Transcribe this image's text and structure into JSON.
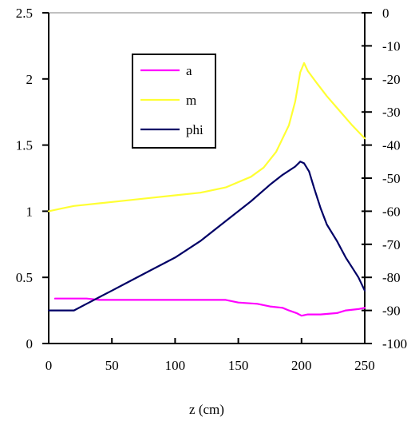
{
  "chart_data": {
    "type": "line",
    "xlabel": "z (cm)",
    "xlim": [
      0,
      250
    ],
    "xticks": [
      0,
      50,
      100,
      150,
      200,
      250
    ],
    "ylim_left": [
      0,
      2.5
    ],
    "yticks_left": [
      0,
      0.5,
      1,
      1.5,
      2,
      2.5
    ],
    "ylim_right": [
      -100,
      0
    ],
    "yticks_right": [
      -100,
      -90,
      -80,
      -70,
      -60,
      -50,
      -40,
      -30,
      -20,
      -10,
      0
    ],
    "grid": false,
    "legend_position": "upper-left-inside",
    "series": [
      {
        "name": "a",
        "axis": "left",
        "color": "#ff00ff",
        "points": [
          [
            5,
            0.34
          ],
          [
            30,
            0.34
          ],
          [
            40,
            0.33
          ],
          [
            80,
            0.33
          ],
          [
            100,
            0.33
          ],
          [
            140,
            0.33
          ],
          [
            150,
            0.31
          ],
          [
            165,
            0.3
          ],
          [
            175,
            0.28
          ],
          [
            185,
            0.27
          ],
          [
            190,
            0.25
          ],
          [
            196,
            0.23
          ],
          [
            200,
            0.21
          ],
          [
            205,
            0.22
          ],
          [
            215,
            0.22
          ],
          [
            228,
            0.23
          ],
          [
            235,
            0.25
          ],
          [
            245,
            0.26
          ],
          [
            250,
            0.27
          ]
        ]
      },
      {
        "name": "m",
        "axis": "left",
        "color": "#ffff33",
        "points": [
          [
            0,
            1.0
          ],
          [
            10,
            1.02
          ],
          [
            20,
            1.04
          ],
          [
            40,
            1.06
          ],
          [
            60,
            1.08
          ],
          [
            80,
            1.1
          ],
          [
            100,
            1.12
          ],
          [
            120,
            1.14
          ],
          [
            140,
            1.18
          ],
          [
            160,
            1.26
          ],
          [
            170,
            1.33
          ],
          [
            180,
            1.45
          ],
          [
            190,
            1.65
          ],
          [
            195,
            1.83
          ],
          [
            199,
            2.05
          ],
          [
            202,
            2.12
          ],
          [
            205,
            2.06
          ],
          [
            212,
            1.97
          ],
          [
            220,
            1.87
          ],
          [
            230,
            1.76
          ],
          [
            240,
            1.65
          ],
          [
            250,
            1.55
          ]
        ]
      },
      {
        "name": "phi",
        "axis": "right",
        "color": "#000066",
        "points": [
          [
            0,
            -90
          ],
          [
            20,
            -90
          ],
          [
            30,
            -88
          ],
          [
            40,
            -86
          ],
          [
            50,
            -84
          ],
          [
            60,
            -82
          ],
          [
            80,
            -78
          ],
          [
            100,
            -74
          ],
          [
            120,
            -69
          ],
          [
            140,
            -63
          ],
          [
            160,
            -57
          ],
          [
            175,
            -52
          ],
          [
            185,
            -49
          ],
          [
            195,
            -46.5
          ],
          [
            199,
            -45
          ],
          [
            202,
            -45.5
          ],
          [
            206,
            -48
          ],
          [
            210,
            -53
          ],
          [
            215,
            -59
          ],
          [
            220,
            -64
          ],
          [
            228,
            -69
          ],
          [
            235,
            -74
          ],
          [
            240,
            -77
          ],
          [
            245,
            -80
          ],
          [
            250,
            -84
          ]
        ]
      }
    ]
  }
}
